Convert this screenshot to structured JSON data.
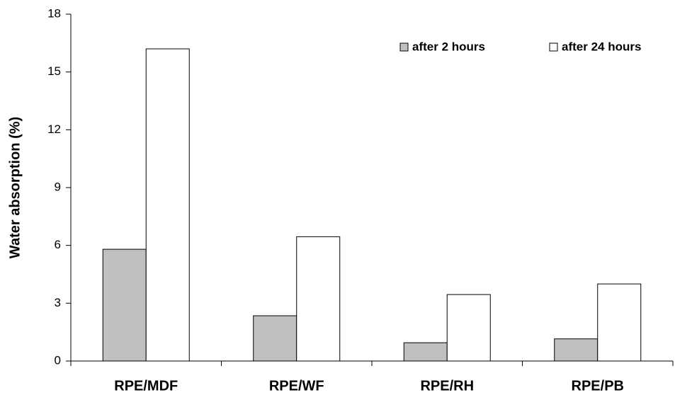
{
  "chart_data": {
    "type": "bar",
    "y_label": "Water absorption (%)",
    "categories": [
      "RPE/MDF",
      "RPE/WF",
      "RPE/RH",
      "RPE/PB"
    ],
    "series": [
      {
        "name": "after 2 hours",
        "color": "#c0c0c0",
        "values": [
          5.8,
          2.35,
          0.95,
          1.15
        ]
      },
      {
        "name": "after 24 hours",
        "color": "#ffffff",
        "values": [
          16.2,
          6.45,
          3.45,
          4.0
        ]
      }
    ],
    "ylim": [
      0,
      18
    ],
    "yticks": [
      0,
      3,
      6,
      9,
      12,
      15,
      18
    ],
    "grid": false,
    "legend": "top-right"
  }
}
